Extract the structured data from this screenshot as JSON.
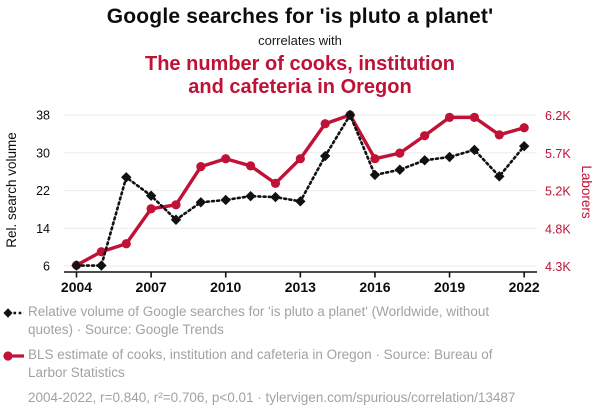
{
  "chart_data": {
    "type": "line",
    "title": "Google searches for 'is pluto a planet'",
    "connector": "correlates with",
    "subtitle": "The number of cooks, institution and cafeteria in Oregon",
    "subtitle_lines": [
      "The number of cooks, institution",
      "and cafeteria in Oregon"
    ],
    "x": [
      2004,
      2005,
      2006,
      2007,
      2008,
      2009,
      2010,
      2011,
      2012,
      2013,
      2014,
      2015,
      2016,
      2017,
      2018,
      2019,
      2020,
      2021,
      2022
    ],
    "x_tick_labels": [
      "2004",
      "2007",
      "2010",
      "2013",
      "2016",
      "2019",
      "2022"
    ],
    "series": [
      {
        "id": "search-volume",
        "name": "Relative volume of Google searches for 'is pluto a planet'",
        "axis": "left",
        "color": "#111111",
        "line_style": "dotted",
        "marker": "diamond",
        "values": [
          6.1,
          6.1,
          24.8,
          20.9,
          15.8,
          19.5,
          20.0,
          20.8,
          20.6,
          19.7,
          29.3,
          38.0,
          25.3,
          26.4,
          28.4,
          29.1,
          30.6,
          25.0,
          31.4
        ]
      },
      {
        "id": "laborers",
        "name": "BLS estimate of cooks, institution and cafeteria in Oregon",
        "axis": "right",
        "color": "#c01137",
        "line_style": "solid",
        "marker": "circle",
        "values": [
          4310,
          4480,
          4580,
          5020,
          5070,
          5550,
          5650,
          5560,
          5340,
          5650,
          6090,
          6200,
          5650,
          5720,
          5940,
          6170,
          6170,
          5950,
          6040
        ]
      }
    ],
    "left_axis": {
      "label": "Rel. search volume",
      "range": [
        6,
        38
      ],
      "ticks": [
        38,
        30,
        22,
        14,
        6
      ]
    },
    "right_axis": {
      "label": "Laborers",
      "range": [
        4300,
        6200
      ],
      "tick_values": [
        6200,
        5725,
        5250,
        4775,
        4300
      ],
      "tick_labels": [
        "6.2K",
        "5.7K",
        "5.2K",
        "4.8K",
        "4.3K"
      ]
    },
    "grid": true,
    "legend_position": "bottom"
  },
  "legend": {
    "items": [
      {
        "marker": "black-diamond-dotted",
        "text": "Relative volume of Google searches for 'is pluto a planet' (Worldwide, without quotes) · Source: Google Trends"
      },
      {
        "marker": "red-circle-solid",
        "text": "BLS estimate of cooks, institution and cafeteria in Oregon · Source: Bureau of Larbor Statistics"
      }
    ],
    "footer": "2004-2022, r=0.840, r²=0.706, p<0.01 · tylervigen.com/spurious/correlation/13487"
  },
  "colors": {
    "accent_red": "#c01137",
    "series_black": "#111111",
    "legend_gray": "#a2a2a2",
    "grid_line": "#efefef",
    "axis_black": "#111111"
  }
}
